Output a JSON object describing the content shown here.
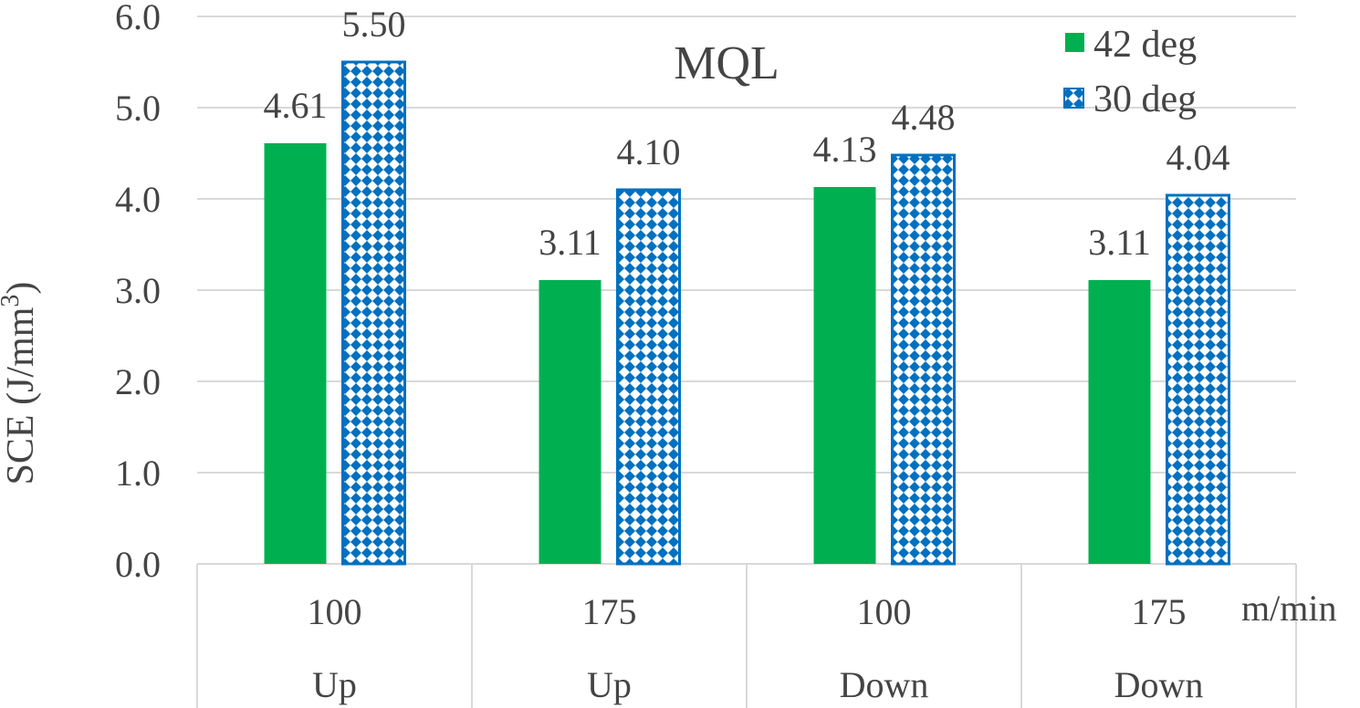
{
  "chart_data": {
    "type": "bar",
    "title": "MQL",
    "ylabel_main": "SCE (J/mm",
    "ylabel_sup": "3",
    "ylabel_close": ")",
    "x_unit": "m/min",
    "categories": [
      {
        "speed": "100",
        "direction": "Up"
      },
      {
        "speed": "175",
        "direction": "Up"
      },
      {
        "speed": "100",
        "direction": "Down"
      },
      {
        "speed": "175",
        "direction": "Down"
      }
    ],
    "series": [
      {
        "name": "42 deg",
        "values": [
          4.61,
          3.11,
          4.13,
          3.11
        ],
        "labels": [
          "4.61",
          "3.11",
          "4.13",
          "3.11"
        ],
        "style": "solid"
      },
      {
        "name": "30 deg",
        "values": [
          5.5,
          4.1,
          4.48,
          4.04
        ],
        "labels": [
          "5.50",
          "4.10",
          "4.48",
          "4.04"
        ],
        "style": "pattern"
      }
    ],
    "ylim": [
      0,
      6
    ],
    "yticks": [
      "0.0",
      "1.0",
      "2.0",
      "3.0",
      "4.0",
      "5.0",
      "6.0"
    ],
    "grid": true,
    "legend_position": "top-right",
    "colors": {
      "green": "#00b050",
      "blue": "#0070c0",
      "grid": "#d9d9d9",
      "text": "#444444"
    }
  }
}
